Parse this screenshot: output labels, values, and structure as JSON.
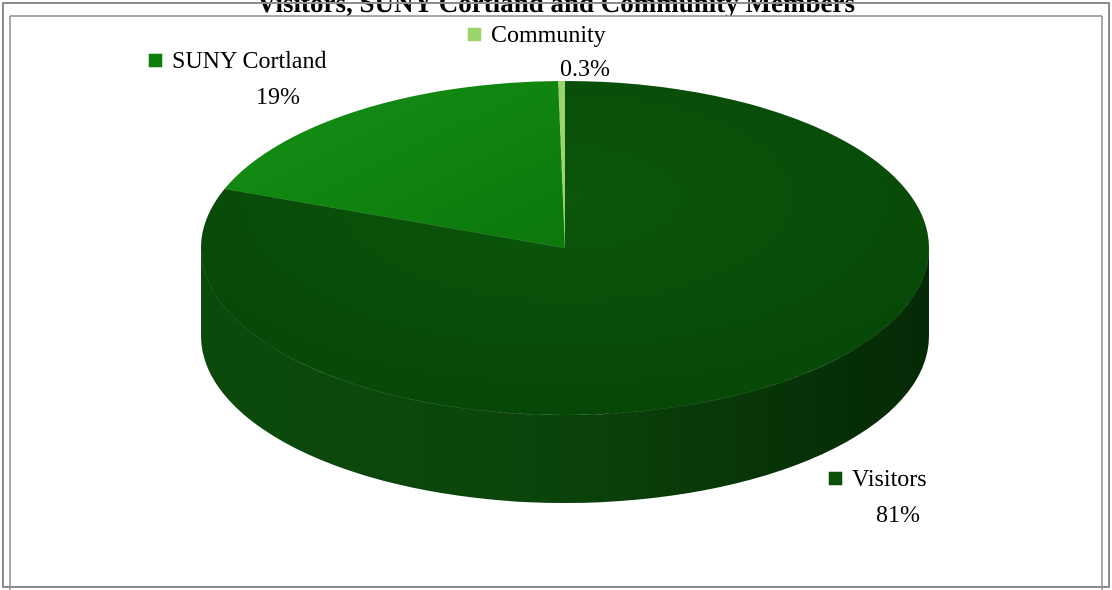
{
  "chart_data": {
    "type": "pie",
    "title": "Visitors, SUNY Cortland and Community Members",
    "slices": [
      {
        "name": "Visitors",
        "value": 81,
        "label": "81%",
        "color": "#0a4f0a"
      },
      {
        "name": "SUNY Cortland",
        "value": 19,
        "label": "19%",
        "color": "#0d7d0d"
      },
      {
        "name": "Community",
        "value": 0.3,
        "label": "0.3%",
        "color": "#9bd46a"
      }
    ],
    "legend_markers": "inline",
    "style": "3d"
  }
}
